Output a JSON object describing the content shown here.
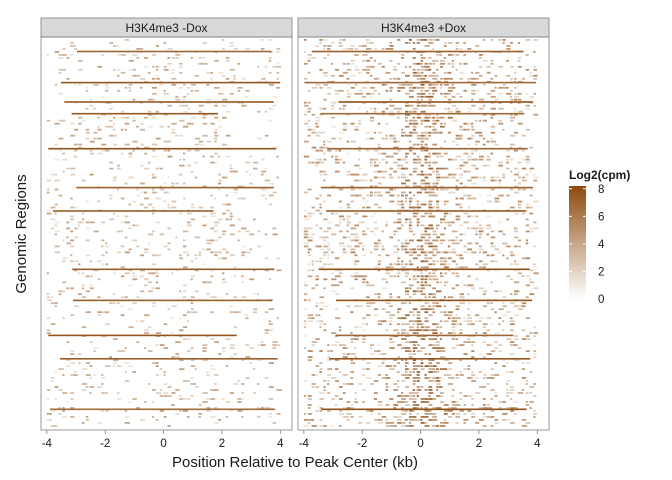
{
  "chart_data": {
    "type": "heatmap",
    "panels": [
      {
        "name": "H3K4me3 -Dox",
        "background_density": 0.12,
        "center_enrichment": 0.02
      },
      {
        "name": "H3K4me3 +Dox",
        "background_density": 0.22,
        "center_enrichment": 0.3
      }
    ],
    "xlabel": "Position Relative to Peak Center (kb)",
    "ylabel": "Genomic Regions",
    "xlim": [
      -4.2,
      4.4
    ],
    "x_ticks": [
      -4,
      -2,
      0,
      2,
      4
    ],
    "x_tick_labels": [
      "-4",
      "-2",
      "0",
      "2",
      "4"
    ],
    "legend": {
      "title": "Log2(cpm)",
      "ticks": [
        0,
        2,
        4,
        6,
        8
      ],
      "tick_labels": [
        "0",
        "2",
        "4",
        "6",
        "8"
      ],
      "range": [
        0,
        8.2
      ],
      "color_low": "#ffffff",
      "color_high": "#8c4a0f",
      "placement": "right"
    },
    "strong_rows_fraction": [
      0.03,
      0.11,
      0.16,
      0.19,
      0.28,
      0.38,
      0.44,
      0.59,
      0.67,
      0.76,
      0.82,
      0.95
    ],
    "colors": {
      "strip": "#d9d9d9",
      "panel_border": "#7f7f7f",
      "signal": "#b5713a"
    }
  }
}
